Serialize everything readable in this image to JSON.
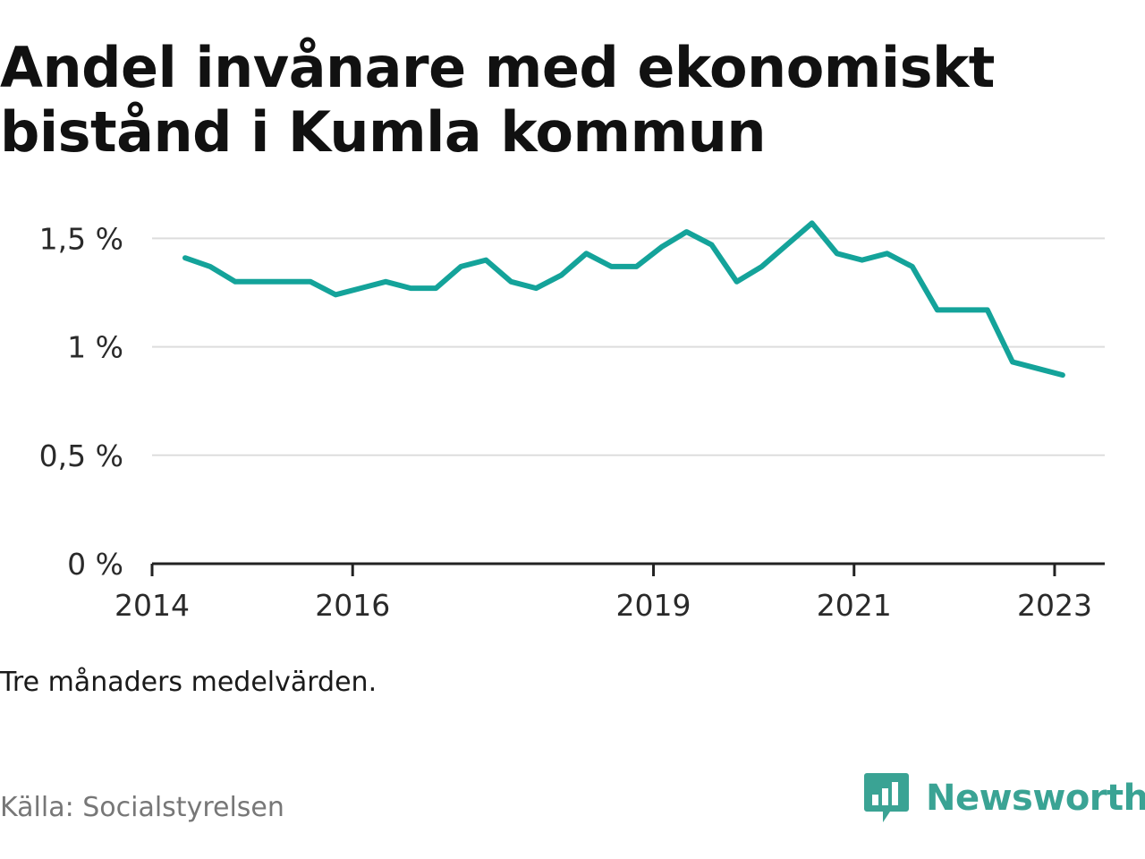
{
  "title": "Andel invånare med ekonomiskt bistånd i Kumla kommun",
  "note": "Tre månaders medelvärden.",
  "source": "Källa: Socialstyrelsen",
  "brand": {
    "name": "Newsworthy",
    "color": "#3aa394",
    "icon": "bar-chart-speech-bubble-icon"
  },
  "colors": {
    "line": "#14a39a",
    "grid": "#dddddd",
    "axis": "#222222"
  },
  "chart_data": {
    "type": "line",
    "title": "Andel invånare med ekonomiskt bistånd i Kumla kommun",
    "xlabel": "",
    "ylabel": "",
    "ylim": [
      0,
      1.65
    ],
    "xlim": [
      2014.0,
      2023.5
    ],
    "y_ticks": [
      0,
      0.5,
      1,
      1.5
    ],
    "y_tick_labels": [
      "0 %",
      "0,5 %",
      "1 %",
      "1,5 %"
    ],
    "x_ticks": [
      2014,
      2016,
      2019,
      2021,
      2023
    ],
    "x_tick_labels": [
      "2014",
      "2016",
      "2019",
      "2021",
      "2023"
    ],
    "grid": true,
    "series": [
      {
        "x": [
          2014.33,
          2014.58,
          2014.83,
          2015.08,
          2015.33,
          2015.58,
          2015.83,
          2016.08,
          2016.33,
          2016.58,
          2016.83,
          2017.08,
          2017.33,
          2017.58,
          2017.83,
          2018.08,
          2018.33,
          2018.58,
          2018.83,
          2019.08,
          2019.33,
          2019.58,
          2019.83,
          2020.08,
          2020.33,
          2020.58,
          2020.83,
          2021.08,
          2021.33,
          2021.58,
          2021.83,
          2022.08,
          2022.33,
          2022.58,
          2022.83,
          2023.08
        ],
        "values": [
          1.41,
          1.37,
          1.3,
          1.3,
          1.3,
          1.3,
          1.24,
          1.27,
          1.3,
          1.27,
          1.27,
          1.37,
          1.4,
          1.3,
          1.27,
          1.33,
          1.43,
          1.37,
          1.37,
          1.46,
          1.53,
          1.47,
          1.3,
          1.37,
          1.47,
          1.57,
          1.43,
          1.4,
          1.43,
          1.37,
          1.17,
          1.17,
          1.17,
          0.93,
          0.9,
          0.87
        ]
      }
    ]
  }
}
